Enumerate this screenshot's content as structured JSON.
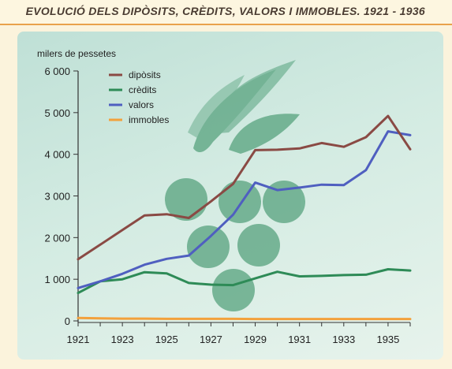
{
  "chart_data": {
    "type": "line",
    "title": "EVOLUCIÓ DELS DIPÒSITS, CRÈDITS, VALORS I IMMOBLES. 1921 - 1936",
    "ylabel": "milers de pessetes",
    "xlabel": "",
    "xlim": [
      1921,
      1936
    ],
    "ylim": [
      0,
      6000
    ],
    "x_ticks": [
      1921,
      1923,
      1925,
      1927,
      1929,
      1931,
      1933,
      1935
    ],
    "y_ticks": [
      0,
      1000,
      2000,
      3000,
      4000,
      5000,
      6000
    ],
    "x_tick_labels": [
      "1921",
      "1923",
      "1925",
      "1927",
      "1929",
      "1931",
      "1933",
      "1935"
    ],
    "y_tick_labels": [
      "0",
      "1 000",
      "2 000",
      "3 000",
      "4 000",
      "5 000",
      "6 000"
    ],
    "grid": false,
    "legend_position": "top-left",
    "x": [
      1921,
      1922,
      1923,
      1924,
      1925,
      1926,
      1927,
      1928,
      1929,
      1930,
      1931,
      1932,
      1933,
      1934,
      1935,
      1936
    ],
    "series": [
      {
        "name": "dipòsits",
        "color": "#8a4a44",
        "values": [
          1480,
          1830,
          2180,
          2530,
          2560,
          2470,
          2870,
          3290,
          4100,
          4110,
          4140,
          4270,
          4180,
          4410,
          4920,
          4120
        ]
      },
      {
        "name": "crèdits",
        "color": "#2e8b57",
        "values": [
          670,
          950,
          1000,
          1170,
          1140,
          910,
          870,
          860,
          1020,
          1180,
          1070,
          1080,
          1100,
          1110,
          1240,
          1210
        ]
      },
      {
        "name": "valors",
        "color": "#4f5fc0",
        "values": [
          790,
          950,
          1130,
          1350,
          1490,
          1570,
          2040,
          2550,
          3320,
          3140,
          3200,
          3270,
          3260,
          3620,
          4550,
          4460
        ]
      },
      {
        "name": "immobles",
        "color": "#f3a13c",
        "values": [
          70,
          60,
          55,
          55,
          50,
          50,
          50,
          50,
          45,
          45,
          45,
          45,
          45,
          45,
          45,
          45
        ]
      }
    ]
  }
}
